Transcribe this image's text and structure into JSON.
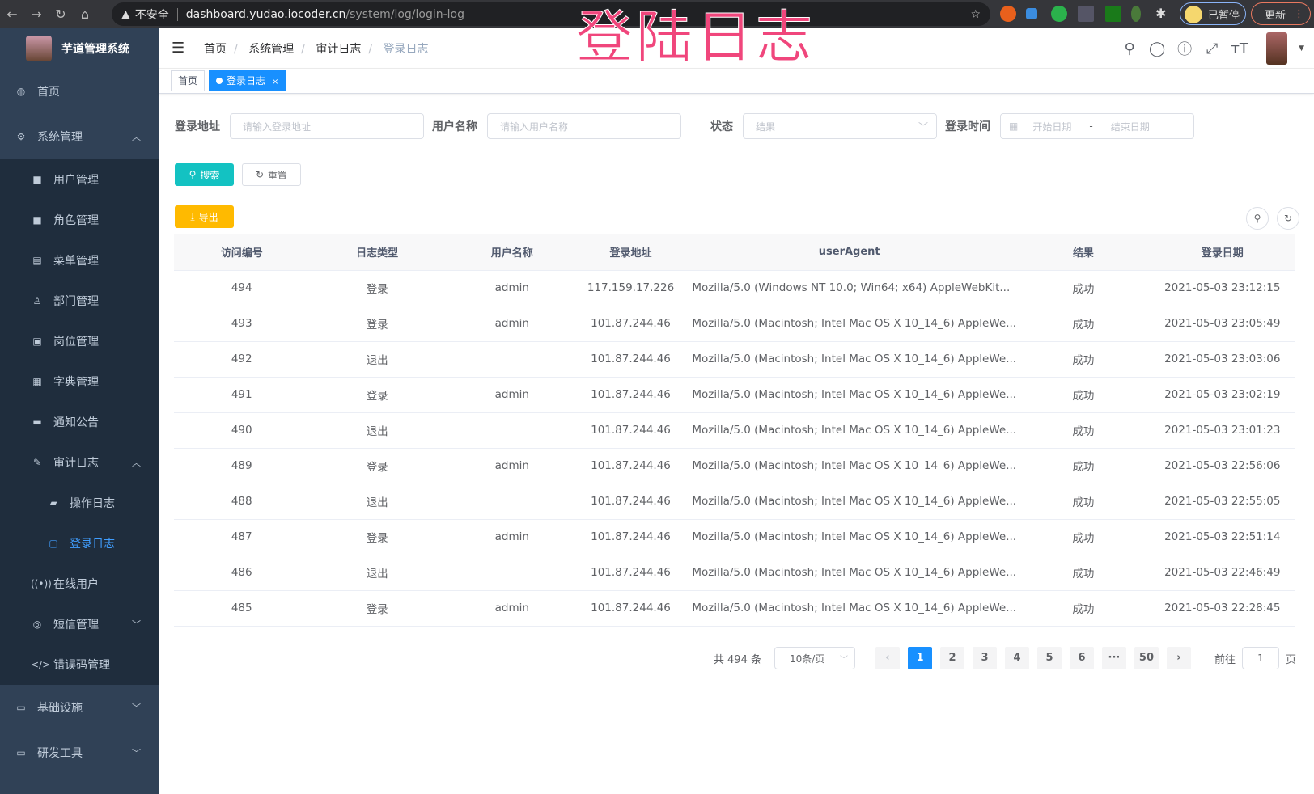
{
  "browser": {
    "security": "不安全",
    "host": "dashboard.yudao.iocoder.cn",
    "path": "/system/log/login-log",
    "paused": "已暂停",
    "update": "更新"
  },
  "overlay_title": "登陆日志",
  "sidebar": {
    "title": "芋道管理系统",
    "items": [
      {
        "label": "首页",
        "icon": "dashboard-icon"
      },
      {
        "label": "系统管理",
        "icon": "gear-icon",
        "expanded": true,
        "children": [
          {
            "label": "用户管理",
            "icon": "user-icon"
          },
          {
            "label": "角色管理",
            "icon": "role-icon"
          },
          {
            "label": "菜单管理",
            "icon": "menu-icon"
          },
          {
            "label": "部门管理",
            "icon": "tree-icon"
          },
          {
            "label": "岗位管理",
            "icon": "post-icon"
          },
          {
            "label": "字典管理",
            "icon": "dict-icon"
          },
          {
            "label": "通知公告",
            "icon": "message-icon"
          },
          {
            "label": "审计日志",
            "icon": "edit-icon",
            "expanded": true,
            "children": [
              {
                "label": "操作日志",
                "icon": "form-icon"
              },
              {
                "label": "登录日志",
                "icon": "logininfor-icon",
                "active": true
              }
            ]
          },
          {
            "label": "在线用户",
            "icon": "online-icon"
          },
          {
            "label": "短信管理",
            "icon": "shield-icon"
          },
          {
            "label": "错误码管理",
            "icon": "code-icon"
          }
        ]
      },
      {
        "label": "基础设施",
        "icon": "monitor-icon"
      },
      {
        "label": "研发工具",
        "icon": "tool-icon"
      }
    ]
  },
  "breadcrumb": [
    "首页",
    "系统管理",
    "审计日志",
    "登录日志"
  ],
  "tags": [
    "首页",
    "登录日志"
  ],
  "filters": {
    "address_label": "登录地址",
    "address_placeholder": "请输入登录地址",
    "user_label": "用户名称",
    "user_placeholder": "请输入用户名称",
    "status_label": "状态",
    "status_placeholder": "结果",
    "time_label": "登录时间",
    "start_placeholder": "开始日期",
    "range_sep": "-",
    "end_placeholder": "结束日期"
  },
  "buttons": {
    "search": "搜索",
    "reset": "重置",
    "export": "导出"
  },
  "table": {
    "columns": [
      "访问编号",
      "日志类型",
      "用户名称",
      "登录地址",
      "userAgent",
      "结果",
      "登录日期"
    ],
    "rows": [
      [
        "494",
        "登录",
        "admin",
        "117.159.17.226",
        "Mozilla/5.0 (Windows NT 10.0; Win64; x64) AppleWebKit...",
        "成功",
        "2021-05-03 23:12:15"
      ],
      [
        "493",
        "登录",
        "admin",
        "101.87.244.46",
        "Mozilla/5.0 (Macintosh; Intel Mac OS X 10_14_6) AppleWe...",
        "成功",
        "2021-05-03 23:05:49"
      ],
      [
        "492",
        "退出",
        "",
        "101.87.244.46",
        "Mozilla/5.0 (Macintosh; Intel Mac OS X 10_14_6) AppleWe...",
        "成功",
        "2021-05-03 23:03:06"
      ],
      [
        "491",
        "登录",
        "admin",
        "101.87.244.46",
        "Mozilla/5.0 (Macintosh; Intel Mac OS X 10_14_6) AppleWe...",
        "成功",
        "2021-05-03 23:02:19"
      ],
      [
        "490",
        "退出",
        "",
        "101.87.244.46",
        "Mozilla/5.0 (Macintosh; Intel Mac OS X 10_14_6) AppleWe...",
        "成功",
        "2021-05-03 23:01:23"
      ],
      [
        "489",
        "登录",
        "admin",
        "101.87.244.46",
        "Mozilla/5.0 (Macintosh; Intel Mac OS X 10_14_6) AppleWe...",
        "成功",
        "2021-05-03 22:56:06"
      ],
      [
        "488",
        "退出",
        "",
        "101.87.244.46",
        "Mozilla/5.0 (Macintosh; Intel Mac OS X 10_14_6) AppleWe...",
        "成功",
        "2021-05-03 22:55:05"
      ],
      [
        "487",
        "登录",
        "admin",
        "101.87.244.46",
        "Mozilla/5.0 (Macintosh; Intel Mac OS X 10_14_6) AppleWe...",
        "成功",
        "2021-05-03 22:51:14"
      ],
      [
        "486",
        "退出",
        "",
        "101.87.244.46",
        "Mozilla/5.0 (Macintosh; Intel Mac OS X 10_14_6) AppleWe...",
        "成功",
        "2021-05-03 22:46:49"
      ],
      [
        "485",
        "登录",
        "admin",
        "101.87.244.46",
        "Mozilla/5.0 (Macintosh; Intel Mac OS X 10_14_6) AppleWe...",
        "成功",
        "2021-05-03 22:28:45"
      ]
    ]
  },
  "pagination": {
    "total": "共 494 条",
    "page_size": "10条/页",
    "pages": [
      "1",
      "2",
      "3",
      "4",
      "5",
      "6",
      "···",
      "50"
    ],
    "current": "1",
    "goto_label": "前往",
    "goto_value": "1",
    "goto_suffix": "页"
  },
  "colors": {
    "sidebar": "#304156",
    "submenu": "#1f2d3d",
    "primary": "#1890ff",
    "search": "#13c2c2",
    "export": "#ffba00",
    "overlay": "#f0467c"
  }
}
